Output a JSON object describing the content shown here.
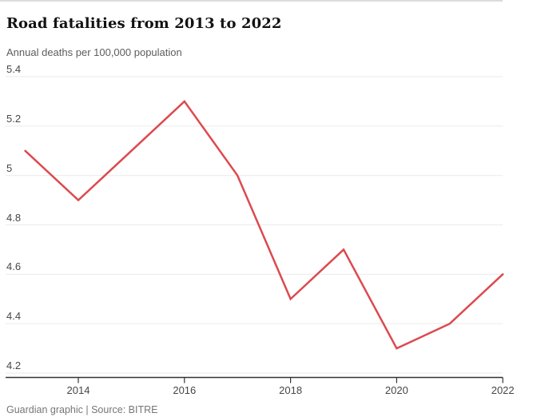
{
  "header": {
    "title": "Road fatalities from 2013 to 2022",
    "subtitle": "Annual deaths per 100,000 population"
  },
  "footer": {
    "credit": "Guardian graphic | Source: BITRE"
  },
  "chart_data": {
    "type": "line",
    "title": "Road fatalities from 2013 to 2022",
    "subtitle": "Annual deaths per 100,000 population",
    "x": [
      2013,
      2014,
      2015,
      2016,
      2017,
      2018,
      2019,
      2020,
      2021,
      2022
    ],
    "values": [
      5.1,
      4.9,
      5.1,
      5.3,
      5.0,
      4.5,
      4.7,
      4.3,
      4.4,
      4.6
    ],
    "series_name": "Annual deaths per 100,000 population",
    "ylim": [
      4.2,
      5.4
    ],
    "y_ticks": [
      5.4,
      5.2,
      5.0,
      4.8,
      4.6,
      4.4,
      4.2
    ],
    "y_tick_labels": [
      "5.4",
      "5.2",
      "5",
      "4.8",
      "4.6",
      "4.4",
      "4.2"
    ],
    "x_ticks": [
      2014,
      2016,
      2018,
      2020,
      2022
    ],
    "x_tick_labels": [
      "2014",
      "2016",
      "2018",
      "2020",
      "2022"
    ],
    "grid": "horizontal",
    "legend": "none",
    "source": "BITRE",
    "colors": {
      "line": "#dc4a4e",
      "gridline": "#ededed",
      "axis": "#333333",
      "tick_text": "#464646",
      "title_text": "#121212",
      "subtitle_text": "#5d5d5d",
      "footer_text": "#767676",
      "top_rule": "#dcdcdc"
    }
  }
}
